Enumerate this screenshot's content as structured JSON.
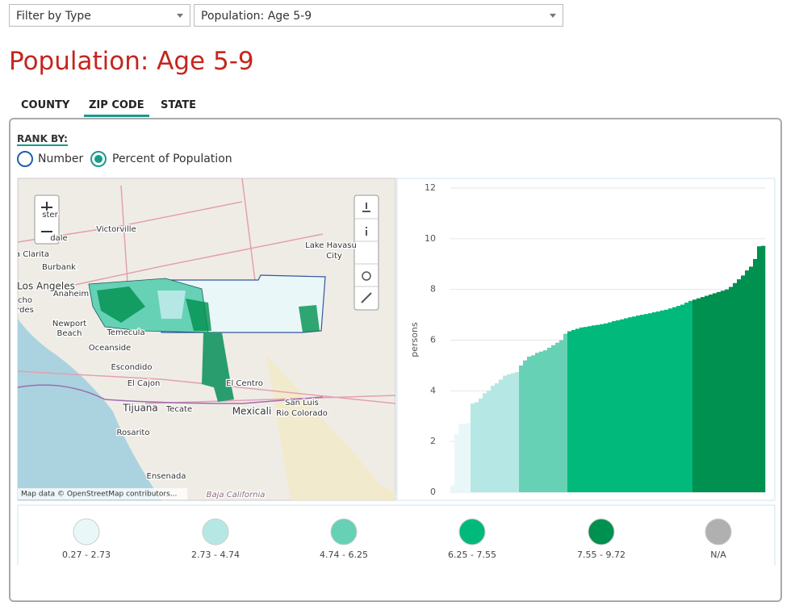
{
  "filters": {
    "type": "Filter by Type",
    "measure": "Population: Age 5-9"
  },
  "title": "Population: Age 5-9",
  "tabs": [
    "COUNTY",
    "ZIP CODE",
    "STATE"
  ],
  "rank_by": {
    "label": "RANK BY:",
    "options": [
      "Number",
      "Percent of Population"
    ]
  },
  "map": {
    "labels": [
      "ster",
      "dale",
      "Victorville",
      "a Clarita",
      "Burbank",
      "Los Angeles",
      "cho",
      "rdes",
      "Anaheim",
      "Newport",
      "Beach",
      "Temecula",
      "Oceanside",
      "Escondido",
      "El Cajon",
      "Tijuana",
      "Tecate",
      "Rosarito",
      "Ensenada",
      "Mexicali",
      "San Luis",
      "Rio Colorado",
      "Lake Havasu",
      "City",
      "El Centro",
      "Baja California"
    ],
    "attribution": "Map data © OpenStreetMap contributors..."
  },
  "chart_data": {
    "type": "bar",
    "y_label": "persons",
    "ylim": [
      0,
      12
    ],
    "yticks": [
      0,
      2,
      4,
      6,
      8,
      10,
      12
    ],
    "grid": true,
    "series": [
      {
        "name": "0.27 - 2.73",
        "color": "#eaf7f8",
        "values": [
          0.27,
          2.3,
          2.7,
          2.7,
          2.73
        ]
      },
      {
        "name": "2.73 - 4.74",
        "color": "#b5e8e5",
        "values": [
          3.5,
          3.55,
          3.7,
          3.9,
          4.0,
          4.2,
          4.3,
          4.45,
          4.6,
          4.65,
          4.7,
          4.74
        ]
      },
      {
        "name": "4.74 - 6.25",
        "color": "#66d1b5",
        "values": [
          5.0,
          5.2,
          5.35,
          5.4,
          5.5,
          5.55,
          5.6,
          5.7,
          5.8,
          5.9,
          6.0,
          6.25
        ]
      },
      {
        "name": "6.25 - 7.55",
        "color": "#00b97b",
        "values": [
          6.35,
          6.4,
          6.45,
          6.5,
          6.52,
          6.55,
          6.58,
          6.6,
          6.63,
          6.66,
          6.7,
          6.75,
          6.78,
          6.82,
          6.86,
          6.9,
          6.93,
          6.97,
          7.0,
          7.03,
          7.06,
          7.1,
          7.13,
          7.17,
          7.2,
          7.25,
          7.3,
          7.35,
          7.4,
          7.48,
          7.55
        ]
      },
      {
        "name": "7.55 - 9.72",
        "color": "#00904f",
        "values": [
          7.6,
          7.65,
          7.7,
          7.75,
          7.8,
          7.85,
          7.9,
          7.95,
          8.0,
          8.1,
          8.25,
          8.4,
          8.55,
          8.75,
          8.9,
          9.2,
          9.7,
          9.72
        ]
      },
      {
        "name": "N/A",
        "color": "#b0b0b0",
        "values": []
      }
    ]
  }
}
